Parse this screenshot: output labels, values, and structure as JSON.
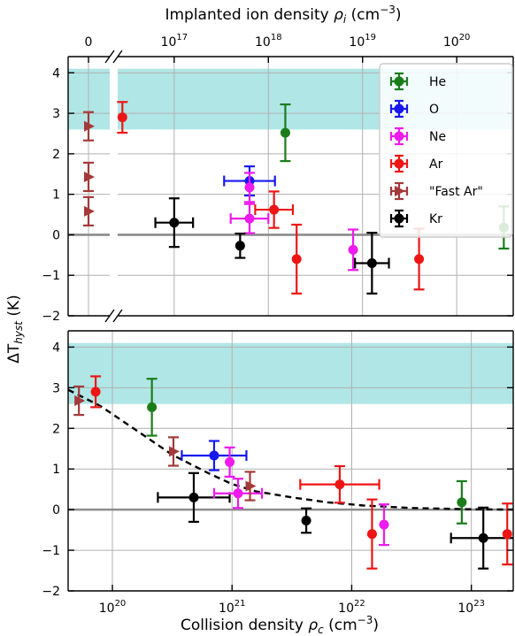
{
  "chart_data": {
    "type": "scatter",
    "y_label": "ΔT",
    "y_label_sub": "hyst",
    "y_label_unit": " (K)",
    "y_range": [
      -2,
      4.4
    ],
    "y_ticks": [
      "4",
      "3",
      "2",
      "1",
      "0",
      "−1",
      "−2"
    ],
    "y_tick_values": [
      4,
      3,
      2,
      1,
      0,
      -1,
      -2
    ],
    "grid": true,
    "shaded_band_y": [
      2.6,
      4.1
    ],
    "shaded_band_color": "#b1e6e6",
    "zero_line_color": "#8c8c8c",
    "legend_placement": "top-right (upper panel)",
    "series": [
      {
        "name": "He",
        "color": "#1a7d1a",
        "marker": "circle"
      },
      {
        "name": "O",
        "color": "#1717ee",
        "marker": "circle"
      },
      {
        "name": "Ne",
        "color": "#ee1aee",
        "marker": "circle"
      },
      {
        "name": "Ar",
        "color": "#ee1515",
        "marker": "circle"
      },
      {
        "name": "\"Fast Ar\"",
        "color": "#a33a3a",
        "marker": "triangle-right"
      },
      {
        "name": "Kr",
        "color": "#000000",
        "marker": "circle"
      }
    ],
    "panels": [
      {
        "id": "top",
        "x_label": "Implanted ion density ",
        "x_label_symbol": "ρ",
        "x_label_sub": "i",
        "x_label_unit": " (cm",
        "x_label_sup": "−3",
        "x_label_close": ")",
        "x_scale": "log (broken axis, 0 shown at left)",
        "x_range_log10": [
          16.4,
          20.6
        ],
        "x_tick_labels": [
          {
            "label": "0",
            "pos": "zero"
          },
          {
            "base": "10",
            "exp": "17",
            "log10": 17
          },
          {
            "base": "10",
            "exp": "18",
            "log10": 18
          },
          {
            "base": "10",
            "exp": "19",
            "log10": 19
          },
          {
            "base": "10",
            "exp": "20",
            "log10": 20
          }
        ],
        "points": [
          {
            "series": "Fast Ar",
            "x": 0,
            "y": 2.68,
            "yerr": 0.35,
            "zero": true
          },
          {
            "series": "Fast Ar",
            "x": 0,
            "y": 1.43,
            "yerr": 0.35,
            "zero": true
          },
          {
            "series": "Fast Ar",
            "x": 0,
            "y": 0.58,
            "yerr": 0.35,
            "zero": true
          },
          {
            "series": "Ar",
            "x_log10": 16.45,
            "y": 2.9,
            "yerr": 0.38
          },
          {
            "series": "Kr",
            "x_log10": 17.0,
            "xerr_log10": 0.2,
            "y": 0.3,
            "yerr": 0.6
          },
          {
            "series": "O",
            "x_log10": 17.8,
            "xerr_log10": 0.27,
            "y": 1.33,
            "yerr": 0.36
          },
          {
            "series": "Ne",
            "x_log10": 17.8,
            "xerr_log10": 0.2,
            "y": 0.4,
            "yerr": 0.36
          },
          {
            "series": "Ne",
            "x_log10": 17.8,
            "y": 1.17,
            "yerr": 0.36
          },
          {
            "series": "Kr",
            "x_log10": 17.7,
            "y": -0.27,
            "yerr": 0.3
          },
          {
            "series": "Ar",
            "x_log10": 18.06,
            "xerr_log10": 0.2,
            "y": 0.62,
            "yerr": 0.45
          },
          {
            "series": "He",
            "x_log10": 18.18,
            "y": 2.52,
            "yerr": 0.7
          },
          {
            "series": "Ar",
            "x_log10": 18.3,
            "y": -0.6,
            "yerr": 0.85
          },
          {
            "series": "Ne",
            "x_log10": 18.9,
            "y": -0.37,
            "yerr": 0.5
          },
          {
            "series": "Kr",
            "x_log10": 19.1,
            "xerr_log10": 0.18,
            "y": -0.7,
            "yerr": 0.75
          },
          {
            "series": "Ar",
            "x_log10": 19.6,
            "y": -0.6,
            "yerr": 0.75
          },
          {
            "series": "He",
            "x_log10": 20.5,
            "y": 0.18,
            "yerr": 0.52
          }
        ]
      },
      {
        "id": "bottom",
        "x_label": "Collision density ",
        "x_label_symbol": "ρ",
        "x_label_sub": "c",
        "x_label_unit": " (cm",
        "x_label_sup": "−3",
        "x_label_close": ")",
        "x_scale": "log",
        "x_range_log10": [
          19.63,
          23.35
        ],
        "x_tick_labels": [
          {
            "base": "10",
            "exp": "20",
            "log10": 20
          },
          {
            "base": "10",
            "exp": "21",
            "log10": 21
          },
          {
            "base": "10",
            "exp": "22",
            "log10": 22
          },
          {
            "base": "10",
            "exp": "23",
            "log10": 23
          }
        ],
        "fit_curve": {
          "style": "dashed",
          "color": "#000000",
          "x_log10": [
            19.63,
            19.9,
            20.2,
            20.5,
            20.8,
            21.0,
            21.2,
            21.5,
            21.8,
            22.1,
            22.5,
            23.0,
            23.35
          ],
          "y": [
            2.95,
            2.55,
            1.95,
            1.35,
            0.9,
            0.63,
            0.45,
            0.3,
            0.18,
            0.1,
            0.04,
            0.01,
            0.0
          ]
        },
        "points": [
          {
            "series": "Fast Ar",
            "x_log10": 19.72,
            "y": 2.68,
            "yerr": 0.35
          },
          {
            "series": "Ar",
            "x_log10": 19.86,
            "y": 2.9,
            "yerr": 0.38
          },
          {
            "series": "He",
            "x_log10": 20.33,
            "y": 2.52,
            "yerr": 0.7
          },
          {
            "series": "Fast Ar",
            "x_log10": 20.51,
            "y": 1.43,
            "yerr": 0.35
          },
          {
            "series": "O",
            "x_log10": 20.85,
            "xerr_log10": 0.27,
            "y": 1.33,
            "yerr": 0.36
          },
          {
            "series": "Ne",
            "x_log10": 20.98,
            "y": 1.17,
            "yerr": 0.36
          },
          {
            "series": "Kr",
            "x_log10": 20.68,
            "xerr_log10": 0.3,
            "y": 0.3,
            "yerr": 0.6
          },
          {
            "series": "Ne",
            "x_log10": 21.05,
            "xerr_log10": 0.2,
            "y": 0.4,
            "yerr": 0.36
          },
          {
            "series": "Fast Ar",
            "x_log10": 21.15,
            "y": 0.58,
            "yerr": 0.35
          },
          {
            "series": "Kr",
            "x_log10": 21.62,
            "y": -0.27,
            "yerr": 0.3
          },
          {
            "series": "Ar",
            "x_log10": 21.9,
            "xerr_log10": 0.33,
            "y": 0.62,
            "yerr": 0.45
          },
          {
            "series": "Ar",
            "x_log10": 22.17,
            "y": -0.6,
            "yerr": 0.85
          },
          {
            "series": "Ne",
            "x_log10": 22.27,
            "y": -0.37,
            "yerr": 0.5
          },
          {
            "series": "He",
            "x_log10": 22.92,
            "y": 0.18,
            "yerr": 0.52
          },
          {
            "series": "Kr",
            "x_log10": 23.1,
            "xerr_log10": 0.27,
            "y": -0.7,
            "yerr": 0.75
          },
          {
            "series": "Ar",
            "x_log10": 23.3,
            "y": -0.6,
            "yerr": 0.75
          }
        ]
      }
    ]
  }
}
